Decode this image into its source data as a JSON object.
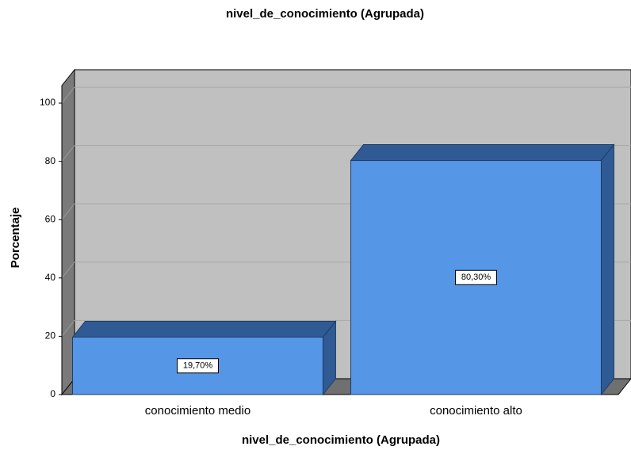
{
  "chart_data": {
    "type": "bar3d",
    "title": "nivel_de_conocimiento (Agrupada)",
    "x_label": "nivel_de_conocimiento (Agrupada)",
    "y_label": "Porcentaje",
    "categories": [
      "conocimiento medio",
      "conocimiento alto"
    ],
    "values": [
      19.7,
      80.3
    ],
    "value_labels": [
      "19,70%",
      "80,30%"
    ],
    "color": "#5596e6",
    "ylim": [
      0,
      106
    ],
    "yticks": [
      0,
      20,
      40,
      60,
      80,
      100
    ],
    "grid": true
  }
}
